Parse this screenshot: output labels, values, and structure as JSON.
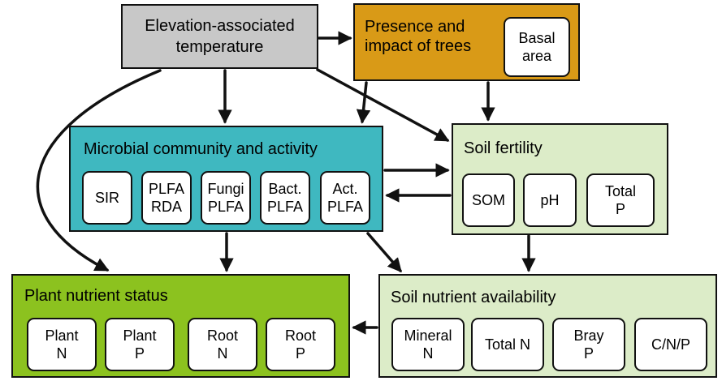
{
  "elevation": {
    "label": "Elevation-associated\ntemperature",
    "color": "#c8c8c8"
  },
  "trees": {
    "label": "Presence and\nimpact of trees",
    "color": "#d99a17",
    "items": [
      "Basal\narea"
    ]
  },
  "microbial": {
    "label": "Microbial community and activity",
    "color": "#3fb8c0",
    "items": [
      "SIR",
      "PLFA\nRDA",
      "Fungi\nPLFA",
      "Bact.\nPLFA",
      "Act.\nPLFA"
    ]
  },
  "fertility": {
    "label": "Soil fertility",
    "color": "#dcecc8",
    "items": [
      "SOM",
      "pH",
      "Total\nP"
    ]
  },
  "plant": {
    "label": "Plant nutrient status",
    "color": "#8cc21f",
    "items": [
      "Plant\nN",
      "Plant\nP",
      "Root\nN",
      "Root\nP"
    ]
  },
  "availability": {
    "label": "Soil nutrient availability",
    "color": "#dcecc8",
    "items": [
      "Mineral\nN",
      "Total N",
      "Bray\nP",
      "C/N/P"
    ]
  }
}
